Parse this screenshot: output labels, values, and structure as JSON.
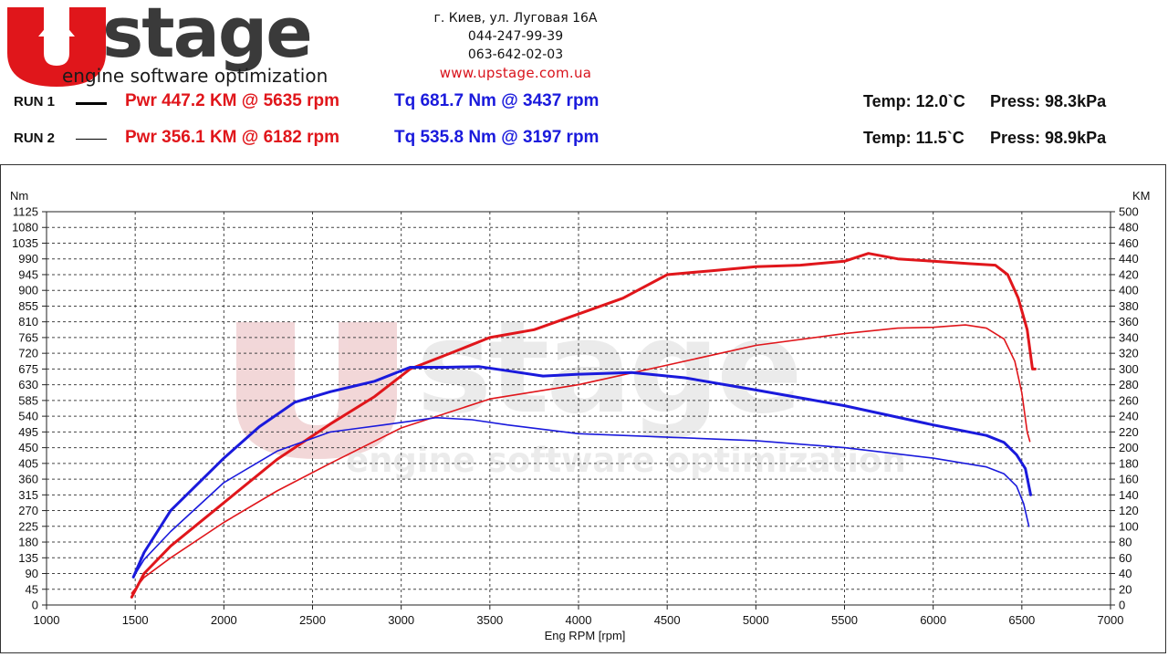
{
  "header": {
    "logo_text": "stage",
    "logo_letter": "U",
    "tagline": "engine software optimization",
    "address": "г. Киев, ул. Луговая 16А",
    "phone1": "044-247-99-39",
    "phone2": "063-642-02-03",
    "website": "www.upstage.com.ua"
  },
  "runs": [
    {
      "label": "RUN 1",
      "power": "Pwr  447.2 KM @ 5635 rpm",
      "torque": "Tq 681.7 Nm @ 3437 rpm",
      "temp": "Temp: 12.0`C",
      "press": "Press: 98.3kPa"
    },
    {
      "label": "RUN 2",
      "power": "Pwr  356.1 KM @ 6182 rpm",
      "torque": "Tq 535.8 Nm @ 3197 rpm",
      "temp": "Temp: 11.5`C",
      "press": "Press: 98.9kPa"
    }
  ],
  "colors": {
    "power": "#e0161b",
    "torque": "#1a1adc",
    "watermark_red": "#e8b7b9",
    "watermark_grey": "#dcdcdc"
  },
  "chart_data": {
    "type": "line",
    "xlabel": "Eng RPM [rpm]",
    "ylabel_left": "Nm",
    "ylabel_right": "KM",
    "xlim": [
      1000,
      7000
    ],
    "ylim_left": [
      0,
      1125
    ],
    "ylim_right": [
      0,
      500
    ],
    "x_ticks": [
      1000,
      1500,
      2000,
      2500,
      3000,
      3500,
      4000,
      4500,
      5000,
      5500,
      6000,
      6500,
      7000
    ],
    "y_ticks_left": [
      0,
      45,
      90,
      135,
      180,
      225,
      270,
      315,
      360,
      405,
      450,
      495,
      540,
      585,
      630,
      675,
      720,
      765,
      810,
      855,
      900,
      945,
      990,
      1035,
      1080,
      1125
    ],
    "y_ticks_right": [
      0,
      20,
      40,
      60,
      80,
      100,
      120,
      140,
      160,
      180,
      200,
      220,
      240,
      260,
      280,
      300,
      320,
      340,
      360,
      380,
      400,
      420,
      440,
      460,
      480,
      500
    ],
    "grid": true,
    "series": [
      {
        "name": "RUN 1",
        "quantity": "Pwr",
        "axis": "right",
        "color": "#e0161b",
        "width": 3,
        "x": [
          1480,
          1550,
          1700,
          2000,
          2300,
          2600,
          2850,
          3050,
          3300,
          3500,
          3750,
          4000,
          4250,
          4500,
          4750,
          5000,
          5250,
          5500,
          5635,
          5800,
          6000,
          6200,
          6350,
          6420,
          6480,
          6530,
          6560,
          6575
        ],
        "y": [
          10,
          40,
          75,
          130,
          185,
          230,
          265,
          300,
          322,
          340,
          350,
          370,
          390,
          420,
          425,
          430,
          432,
          437,
          447,
          440,
          437,
          434,
          432,
          420,
          390,
          350,
          300,
          300
        ]
      },
      {
        "name": "RUN 2",
        "quantity": "Pwr",
        "axis": "right",
        "color": "#e0161b",
        "width": 1.6,
        "x": [
          1480,
          1550,
          1700,
          2000,
          2300,
          2600,
          3000,
          3500,
          4000,
          4500,
          5000,
          5500,
          5800,
          6000,
          6182,
          6300,
          6400,
          6460,
          6500,
          6530,
          6545
        ],
        "y": [
          15,
          35,
          60,
          105,
          145,
          180,
          225,
          262,
          280,
          305,
          330,
          345,
          352,
          353,
          356,
          352,
          338,
          310,
          270,
          220,
          208
        ]
      },
      {
        "name": "RUN 1",
        "quantity": "Tq",
        "axis": "left",
        "color": "#1a1adc",
        "width": 3,
        "x": [
          1490,
          1550,
          1700,
          2000,
          2200,
          2400,
          2600,
          2850,
          3050,
          3250,
          3437,
          3600,
          3800,
          4000,
          4300,
          4600,
          5000,
          5500,
          6000,
          6300,
          6400,
          6470,
          6520,
          6550
        ],
        "y": [
          80,
          150,
          270,
          420,
          510,
          580,
          610,
          640,
          680,
          680,
          682,
          670,
          655,
          660,
          665,
          650,
          615,
          570,
          515,
          485,
          465,
          430,
          390,
          315
        ]
      },
      {
        "name": "RUN 2",
        "quantity": "Tq",
        "axis": "left",
        "color": "#1a1adc",
        "width": 1.6,
        "x": [
          1490,
          1550,
          1700,
          2000,
          2300,
          2600,
          2900,
          3197,
          3400,
          3600,
          4000,
          4500,
          5000,
          5500,
          6000,
          6300,
          6400,
          6470,
          6510,
          6540
        ],
        "y": [
          80,
          130,
          210,
          350,
          440,
          495,
          515,
          536,
          530,
          515,
          490,
          480,
          470,
          450,
          420,
          395,
          375,
          340,
          290,
          225
        ]
      }
    ]
  }
}
